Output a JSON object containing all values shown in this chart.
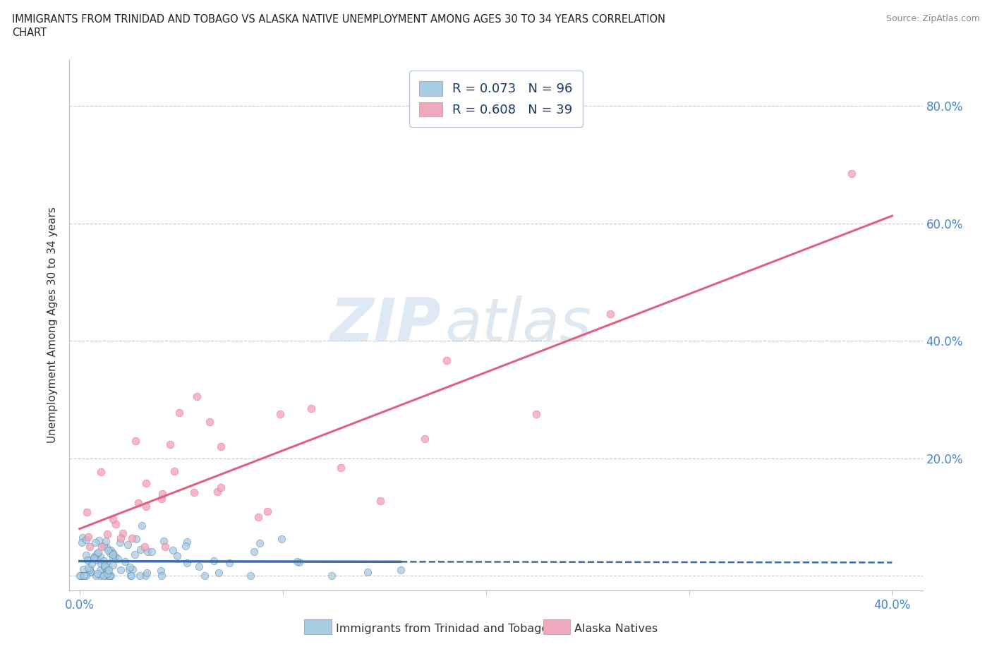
{
  "title_line1": "IMMIGRANTS FROM TRINIDAD AND TOBAGO VS ALASKA NATIVE UNEMPLOYMENT AMONG AGES 30 TO 34 YEARS CORRELATION",
  "title_line2": "CHART",
  "source": "Source: ZipAtlas.com",
  "ylabel": "Unemployment Among Ages 30 to 34 years",
  "blue_R": 0.073,
  "blue_N": 96,
  "pink_R": 0.608,
  "pink_N": 39,
  "blue_color": "#a8cce0",
  "pink_color": "#f0a8bf",
  "blue_line_color": "#3a6ea8",
  "pink_line_color": "#e06080",
  "legend_text_color": "#1a3a6a",
  "legend_blue_label": "Immigrants from Trinidad and Tobago",
  "legend_pink_label": "Alaska Natives",
  "watermark_zip": "ZIP",
  "watermark_atlas": "atlas",
  "xlim": [
    -0.005,
    0.415
  ],
  "ylim": [
    -0.025,
    0.88
  ],
  "x_tick_positions": [
    0.0,
    0.1,
    0.2,
    0.3,
    0.4
  ],
  "x_tick_labels": [
    "0.0%",
    "",
    "",
    "",
    "40.0%"
  ],
  "y_tick_positions": [
    0.0,
    0.2,
    0.4,
    0.6,
    0.8
  ],
  "y_tick_labels_right": [
    "",
    "20.0%",
    "40.0%",
    "60.0%",
    "80.0%"
  ],
  "pink_intercept": 0.08,
  "pink_slope": 1.28,
  "blue_intercept": 0.02,
  "blue_slope": 0.05
}
